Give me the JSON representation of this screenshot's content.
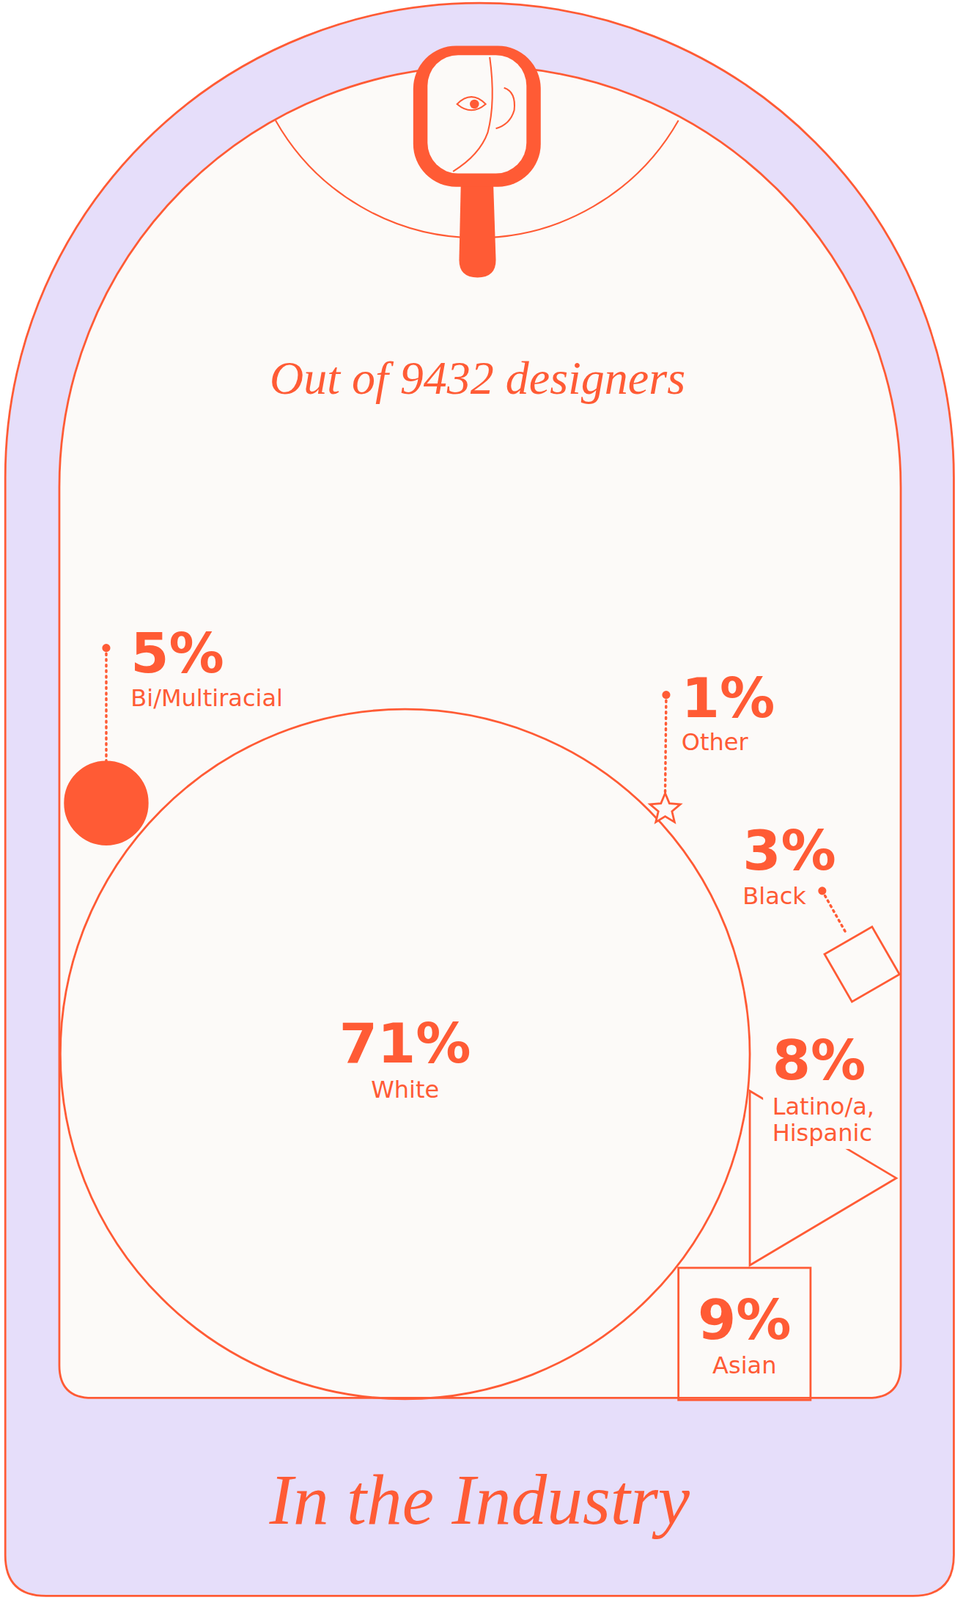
{
  "chart_data": {
    "type": "bubble",
    "title": "Out of 9432 designers",
    "subtitle": "In the Industry",
    "categories": [
      "White",
      "Bi/Multiracial",
      "Other",
      "Black",
      "Latino/a, Hispanic",
      "Asian"
    ],
    "values": [
      71,
      5,
      1,
      3,
      8,
      9
    ],
    "value_labels": [
      "71%",
      "5%",
      "1%",
      "3%",
      "8%",
      "9%"
    ],
    "data_labels": true,
    "color": "#ff5b35"
  }
}
